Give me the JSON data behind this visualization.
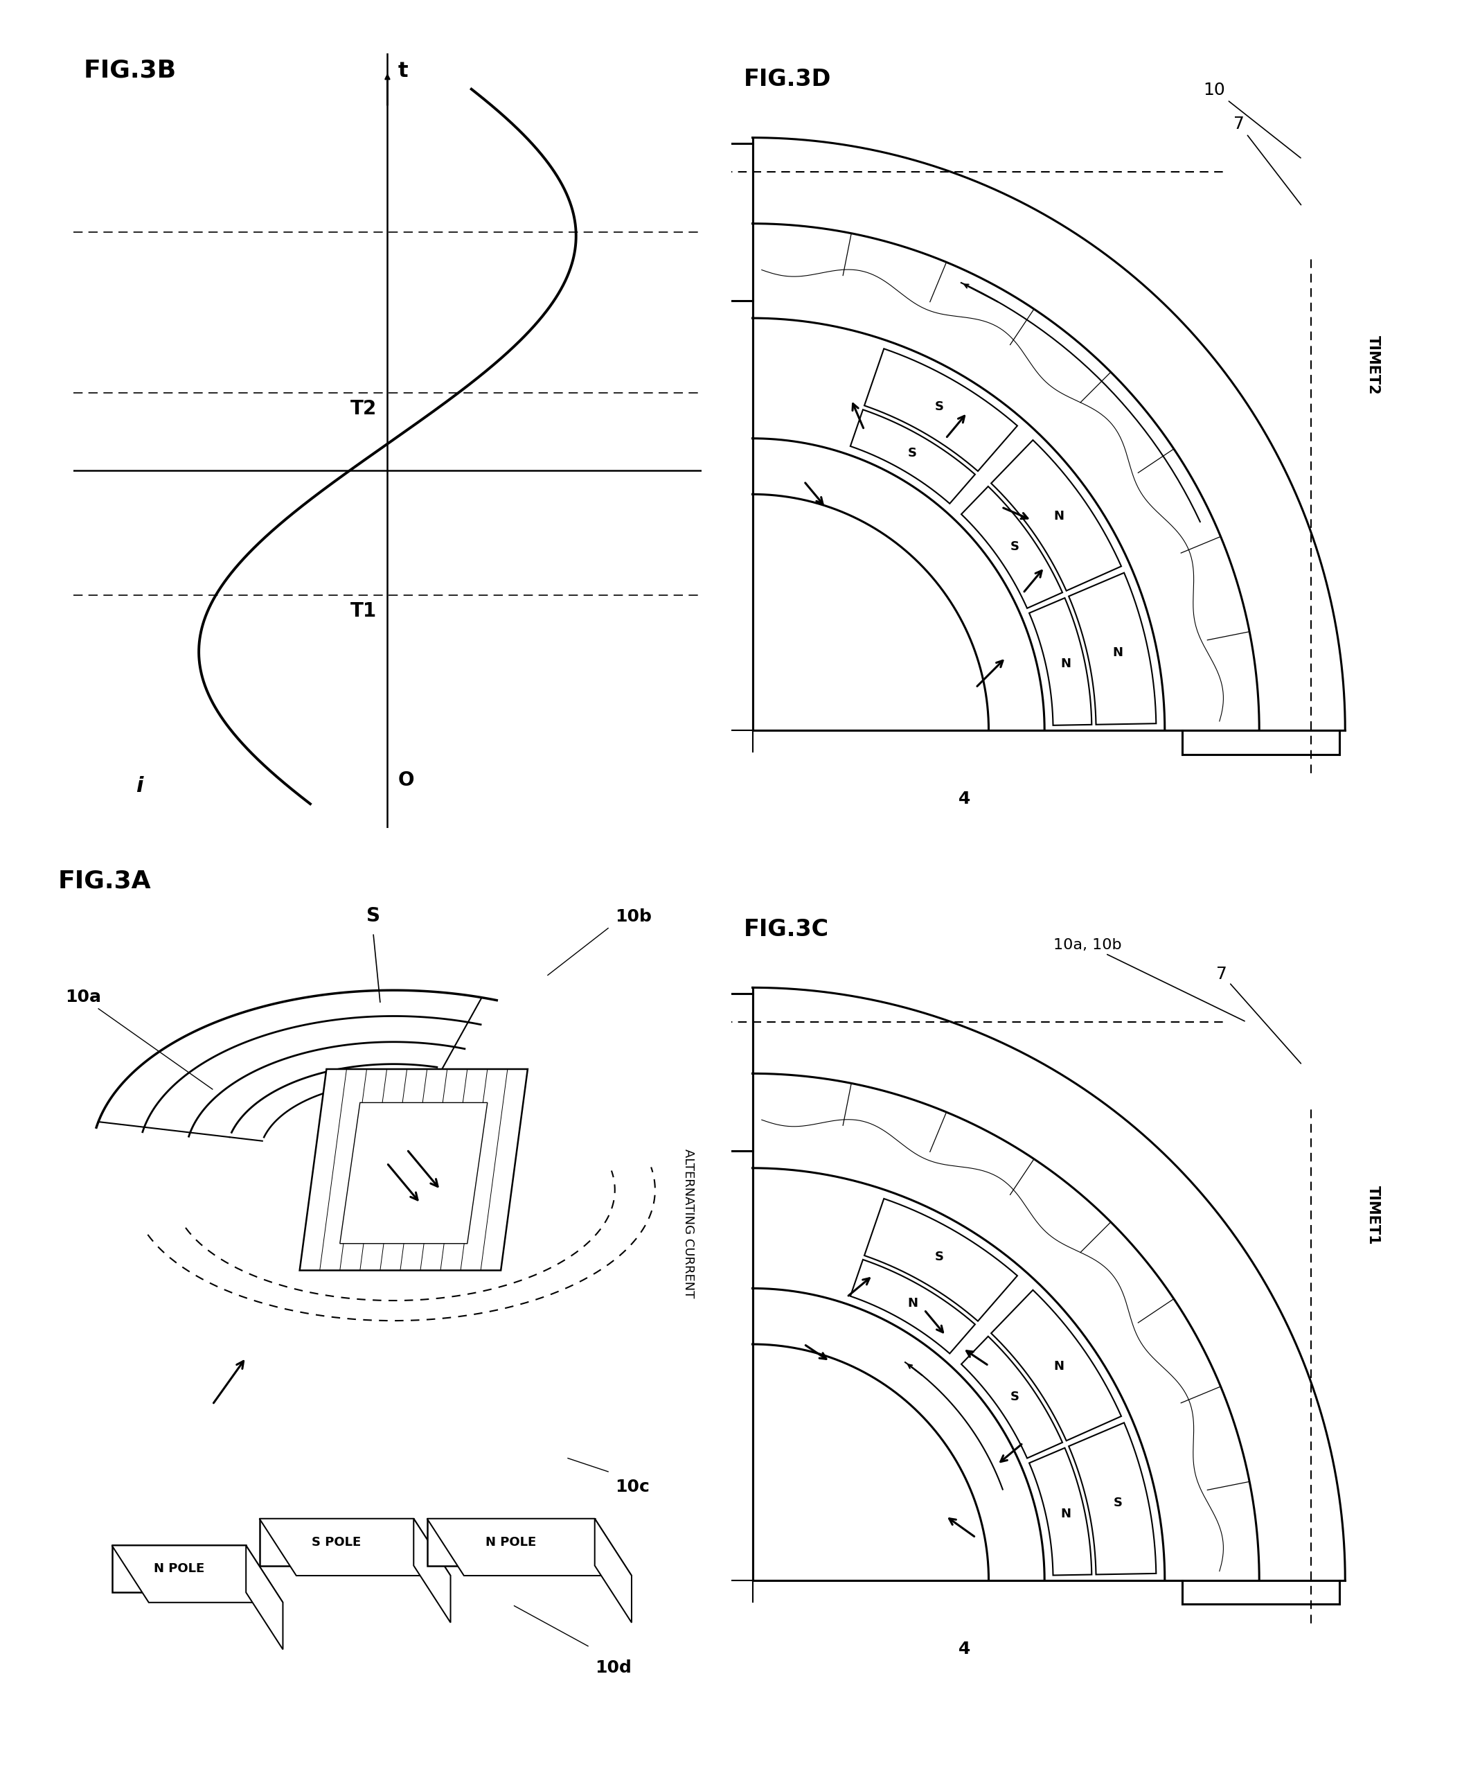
{
  "fig_labels": {
    "3A": "FIG.3A",
    "3B": "FIG.3B",
    "3C": "FIG.3C",
    "3D": "FIG.3D"
  },
  "colors": {
    "black": "#000000",
    "white": "#ffffff",
    "bg": "#ffffff"
  },
  "waveform": {
    "t_axis_label": "t",
    "i_axis_label": "i",
    "T1_label": "T1",
    "T2_label": "T2",
    "origin_label": "O"
  },
  "fig3c_labels": {
    "time": "TIMET1",
    "part4": "4",
    "part7": "7",
    "part10ab": "10a, 10b",
    "poles": [
      "S",
      "N",
      "S",
      "N",
      "S",
      "N"
    ],
    "arrows": [
      [
        0.52,
        0.1,
        -0.07,
        0.05
      ],
      [
        0.63,
        0.32,
        -0.06,
        -0.05
      ],
      [
        0.55,
        0.5,
        -0.06,
        0.04
      ],
      [
        0.4,
        0.63,
        0.05,
        -0.06
      ],
      [
        0.22,
        0.66,
        0.06,
        0.05
      ],
      [
        0.12,
        0.55,
        0.06,
        -0.04
      ]
    ]
  },
  "fig3d_labels": {
    "time": "TIMET2",
    "part4": "4",
    "part7": "7",
    "part10": "10",
    "poles": [
      "N",
      "N",
      "S",
      "N",
      "S",
      "S"
    ],
    "arrows": [
      [
        0.52,
        0.1,
        0.07,
        0.07
      ],
      [
        0.63,
        0.32,
        0.05,
        0.06
      ],
      [
        0.58,
        0.52,
        0.07,
        -0.03
      ],
      [
        0.45,
        0.68,
        0.05,
        0.06
      ],
      [
        0.26,
        0.7,
        -0.03,
        0.07
      ],
      [
        0.12,
        0.58,
        0.05,
        -0.06
      ]
    ]
  }
}
